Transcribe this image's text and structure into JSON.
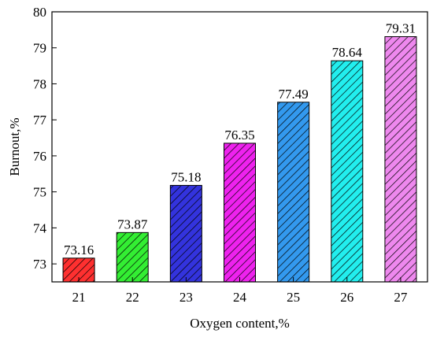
{
  "chart_data": {
    "type": "bar",
    "title": "",
    "xlabel": "Oxygen content,%",
    "ylabel": "Burnout,%",
    "categories": [
      "21",
      "22",
      "23",
      "24",
      "25",
      "26",
      "27"
    ],
    "values": [
      73.16,
      73.87,
      75.18,
      76.35,
      77.49,
      78.64,
      79.31
    ],
    "value_labels": [
      "73.16",
      "73.87",
      "75.18",
      "76.35",
      "77.49",
      "78.64",
      "79.31"
    ],
    "ylim": [
      72.5,
      80
    ],
    "yticks": [
      "73",
      "74",
      "75",
      "76",
      "77",
      "78",
      "79",
      "80"
    ],
    "bar_colors": [
      "#ff3030",
      "#33ee33",
      "#3333dd",
      "#ee22ee",
      "#3399ee",
      "#22eeee",
      "#ee88ee"
    ],
    "bar_pattern": "diagonal-hatch",
    "grid": false,
    "legend": "none"
  }
}
